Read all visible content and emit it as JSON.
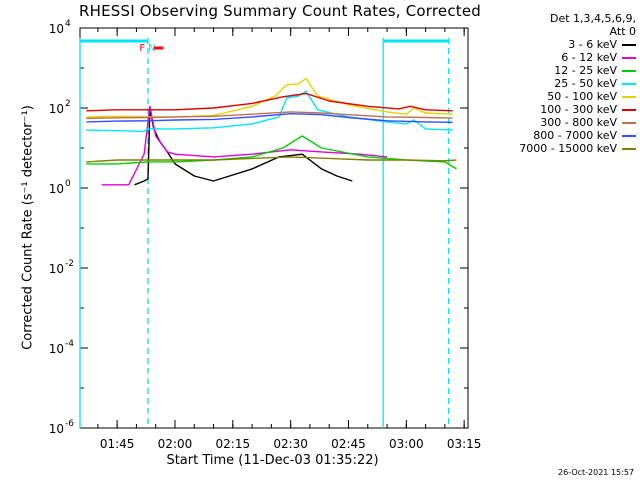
{
  "chart_data": {
    "type": "line",
    "title": "RHESSI Observing Summary Count Rates, Corrected",
    "xlabel": "Start Time (11-Dec-03 01:35:22)",
    "ylabel": "Corrected Count Rate (s⁻¹ detector⁻¹)",
    "x_range": [
      "01:35:22",
      "03:16:00"
    ],
    "x_ticks": [
      "01:45",
      "02:00",
      "02:15",
      "02:30",
      "02:45",
      "03:00",
      "03:15"
    ],
    "y_scale": "log",
    "ylim": [
      1e-06,
      10000.0
    ],
    "y_ticks": [
      {
        "value": 1e-06,
        "base": "10",
        "exp": "-6"
      },
      {
        "value": 0.0001,
        "base": "10",
        "exp": "-4"
      },
      {
        "value": 0.01,
        "base": "10",
        "exp": "-2"
      },
      {
        "value": 1,
        "base": "10",
        "exp": "0"
      },
      {
        "value": 100,
        "base": "10",
        "exp": "2"
      },
      {
        "value": 10000,
        "base": "10",
        "exp": "4"
      }
    ],
    "markers": {
      "vertical_lines": [
        {
          "time": "01:35:22",
          "style": "solid"
        },
        {
          "time": "01:53:00",
          "style": "dashed"
        },
        {
          "time": "02:54:00",
          "style": "solid"
        },
        {
          "time": "03:11:00",
          "style": "dashed"
        }
      ],
      "night_bars": [
        {
          "start": "01:35:22",
          "end": "01:53:00"
        },
        {
          "start": "02:54:00",
          "end": "03:11:00"
        }
      ],
      "flags": [
        {
          "label": "F",
          "time": "01:51:30",
          "color": "#ff0000"
        },
        {
          "label": "N",
          "time": "01:54:00",
          "color": "#00e5ff"
        }
      ]
    },
    "legend": {
      "header": [
        "Det 1,3,4,5,6,9,",
        "Att 0"
      ],
      "position": "right",
      "entries": [
        {
          "label": "3 - 6 keV",
          "color": "#000000"
        },
        {
          "label": "6 - 12 keV",
          "color": "#e000e0"
        },
        {
          "label": "12 - 25 keV",
          "color": "#00d000"
        },
        {
          "label": "25 - 50 keV",
          "color": "#00e5ff"
        },
        {
          "label": "50 - 100 keV",
          "color": "#e8d000"
        },
        {
          "label": "100 - 300 keV",
          "color": "#e00000"
        },
        {
          "label": "300 - 800 keV",
          "color": "#c07050"
        },
        {
          "label": "800 - 7000 keV",
          "color": "#3050ff"
        },
        {
          "label": "7000 - 15000 keV",
          "color": "#808000"
        }
      ]
    },
    "series": [
      {
        "name": "3 - 6 keV",
        "color": "#000000",
        "x": [
          "01:49:30",
          "01:52:00",
          "01:53:00",
          "01:53:30",
          "01:54:30",
          "01:56:00",
          "01:58:00",
          "02:00:00",
          "02:05:00",
          "02:10:00",
          "02:20:00",
          "02:27:00",
          "02:33:00",
          "02:38:00",
          "02:42:00",
          "02:46:00"
        ],
        "y": [
          1.2,
          1.5,
          1.7,
          100,
          30,
          15,
          8,
          4,
          2,
          1.5,
          3,
          6,
          7,
          3,
          2,
          1.5
        ]
      },
      {
        "name": "6 - 12 keV",
        "color": "#e000e0",
        "x": [
          "01:41:00",
          "01:48:00",
          "01:52:00",
          "01:53:30",
          "01:55:00",
          "01:58:00",
          "02:00:00",
          "02:10:00",
          "02:20:00",
          "02:30:00",
          "02:38:00",
          "02:48:00",
          "02:55:00"
        ],
        "y": [
          1.2,
          1.2,
          7,
          110,
          20,
          8,
          7,
          6,
          7,
          9,
          8,
          7,
          6
        ]
      },
      {
        "name": "12 - 25 keV",
        "color": "#00d000",
        "x": [
          "01:37:00",
          "01:45:00",
          "01:53:00",
          "02:00:00",
          "02:10:00",
          "02:20:00",
          "02:28:00",
          "02:33:00",
          "02:38:00",
          "02:50:00",
          "03:00:00",
          "03:10:00",
          "03:13:00"
        ],
        "y": [
          4,
          4,
          4.5,
          4.5,
          5,
          6,
          10,
          20,
          10,
          6,
          5,
          4.5,
          3
        ]
      },
      {
        "name": "25 - 50 keV",
        "color": "#00e5ff",
        "x": [
          "01:37:00",
          "01:45:00",
          "01:52:00",
          "01:53:00",
          "02:00:00",
          "02:10:00",
          "02:20:00",
          "02:27:00",
          "02:29:00",
          "02:32:00",
          "02:34:00",
          "02:37:00",
          "02:45:00",
          "02:55:00",
          "03:00:00",
          "03:02:00",
          "03:05:00",
          "03:12:00"
        ],
        "y": [
          28,
          27,
          26,
          30,
          30,
          32,
          40,
          60,
          180,
          200,
          260,
          90,
          60,
          45,
          40,
          50,
          30,
          28
        ]
      },
      {
        "name": "50 - 100 keV",
        "color": "#e8d000",
        "x": [
          "01:37:00",
          "01:45:00",
          "01:53:00",
          "02:00:00",
          "02:10:00",
          "02:20:00",
          "02:26:00",
          "02:29:00",
          "02:32:00",
          "02:34:00",
          "02:37:00",
          "02:45:00",
          "02:55:00",
          "03:00:00",
          "03:02:00",
          "03:05:00",
          "03:12:00"
        ],
        "y": [
          60,
          62,
          60,
          60,
          65,
          110,
          200,
          380,
          400,
          550,
          200,
          120,
          80,
          70,
          100,
          75,
          70
        ]
      },
      {
        "name": "100 - 300 keV",
        "color": "#e00000",
        "x": [
          "01:37:00",
          "01:45:00",
          "01:53:00",
          "02:00:00",
          "02:10:00",
          "02:20:00",
          "02:28:00",
          "02:34:00",
          "02:40:00",
          "02:50:00",
          "02:58:00",
          "03:01:00",
          "03:05:00",
          "03:12:00"
        ],
        "y": [
          85,
          90,
          90,
          90,
          100,
          130,
          190,
          230,
          150,
          110,
          95,
          110,
          90,
          85
        ]
      },
      {
        "name": "300 - 800 keV",
        "color": "#c07050",
        "x": [
          "01:37:00",
          "01:45:00",
          "01:53:00",
          "02:00:00",
          "02:10:00",
          "02:20:00",
          "02:30:00",
          "02:38:00",
          "02:45:00",
          "02:55:00",
          "03:05:00",
          "03:12:00"
        ],
        "y": [
          55,
          57,
          58,
          60,
          62,
          70,
          80,
          75,
          68,
          60,
          58,
          56
        ]
      },
      {
        "name": "800 - 7000 keV",
        "color": "#3050ff",
        "x": [
          "01:37:00",
          "01:45:00",
          "01:53:00",
          "02:00:00",
          "02:10:00",
          "02:20:00",
          "02:30:00",
          "02:38:00",
          "02:45:00",
          "02:55:00",
          "03:05:00",
          "03:12:00"
        ],
        "y": [
          45,
          47,
          48,
          50,
          52,
          60,
          72,
          68,
          58,
          48,
          45,
          44
        ]
      },
      {
        "name": "7000 - 15000 keV",
        "color": "#808000",
        "x": [
          "01:37:00",
          "01:45:00",
          "01:53:00",
          "02:00:00",
          "02:10:00",
          "02:20:00",
          "02:30:00",
          "02:40:00",
          "02:50:00",
          "03:00:00",
          "03:10:00",
          "03:13:00"
        ],
        "y": [
          4.5,
          5,
          5,
          5,
          5,
          5.5,
          6,
          5.5,
          5,
          5,
          4.8,
          5
        ]
      }
    ]
  },
  "footer": {
    "timestamp": "26-Oct-2021 15:57"
  }
}
